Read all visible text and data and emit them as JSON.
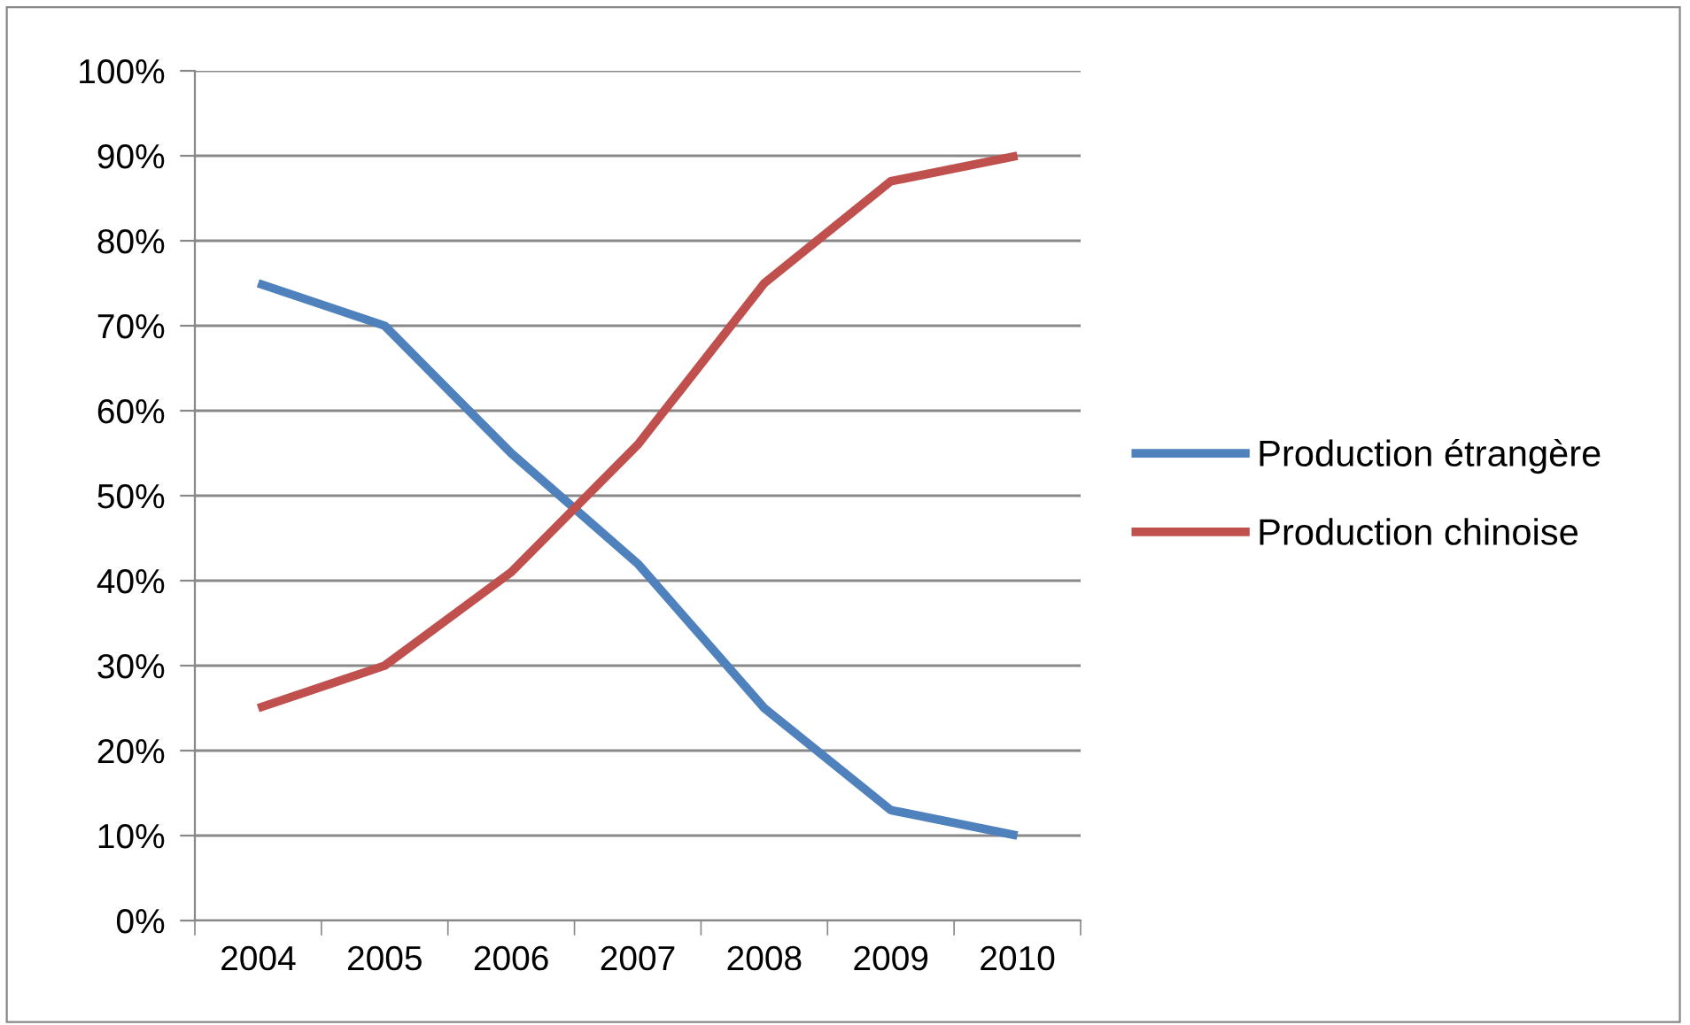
{
  "chart_data": {
    "type": "line",
    "categories": [
      "2004",
      "2005",
      "2006",
      "2007",
      "2008",
      "2009",
      "2010"
    ],
    "series": [
      {
        "name": "Production étrangère",
        "color": "#4f81bd",
        "values": [
          75,
          70,
          55,
          42,
          25,
          13,
          10
        ]
      },
      {
        "name": "Production chinoise",
        "color": "#c0504d",
        "values": [
          25,
          30,
          41,
          56,
          75,
          87,
          90
        ]
      }
    ],
    "ylim": [
      0,
      100
    ],
    "yticks": [
      {
        "value": 0,
        "label": "0%"
      },
      {
        "value": 10,
        "label": "10%"
      },
      {
        "value": 20,
        "label": "20%"
      },
      {
        "value": 30,
        "label": "30%"
      },
      {
        "value": 40,
        "label": "40%"
      },
      {
        "value": 50,
        "label": "50%"
      },
      {
        "value": 60,
        "label": "60%"
      },
      {
        "value": 70,
        "label": "70%"
      },
      {
        "value": 80,
        "label": "80%"
      },
      {
        "value": 90,
        "label": "90%"
      },
      {
        "value": 100,
        "label": "100%"
      }
    ],
    "grid": "y",
    "legend": "right",
    "marker": "none",
    "line_style": "solid"
  }
}
